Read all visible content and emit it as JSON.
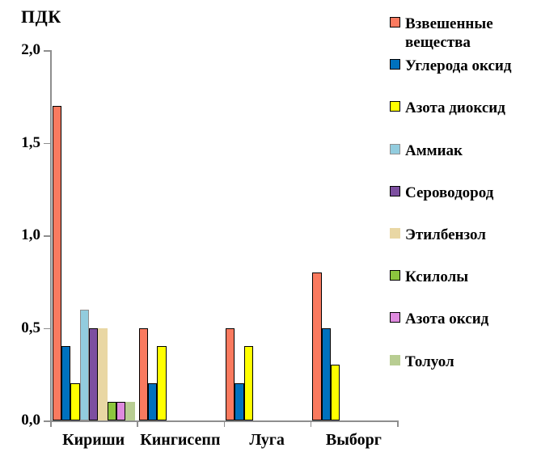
{
  "chart_data": {
    "type": "bar",
    "title": "ПДК",
    "categories": [
      "Кириши",
      "Кингисепп",
      "Луга",
      "Выборг"
    ],
    "series": [
      {
        "name": "Взвешенные вещества",
        "color": "#FA7A5F",
        "border": "#000000",
        "values": [
          1.7,
          0.5,
          0.5,
          0.8
        ]
      },
      {
        "name": "Углерода оксид",
        "color": "#0071BE",
        "border": "#000000",
        "values": [
          0.4,
          0.2,
          0.2,
          0.5
        ]
      },
      {
        "name": "Азота диоксид",
        "color": "#FFFF00",
        "border": "#000000",
        "values": [
          0.2,
          0.4,
          0.4,
          0.3
        ]
      },
      {
        "name": "Аммиак",
        "color": "#92CCDE",
        "border": "#8e8e8e",
        "values": [
          0.6,
          0,
          0,
          0
        ]
      },
      {
        "name": "Сероводород",
        "color": "#7D4FA0",
        "border": "#000000",
        "values": [
          0.5,
          0,
          0,
          0
        ]
      },
      {
        "name": "Этилбензол",
        "color": "#E9D7A4",
        "border": "none",
        "values": [
          0.5,
          0,
          0,
          0
        ]
      },
      {
        "name": "Ксилолы",
        "color": "#8CC63E",
        "border": "#000000",
        "values": [
          0.1,
          0,
          0,
          0
        ]
      },
      {
        "name": "Азота оксид",
        "color": "#DE8ADE",
        "border": "#000000",
        "values": [
          0.1,
          0,
          0,
          0
        ]
      },
      {
        "name": "Толуол",
        "color": "#B8CD92",
        "border": "none",
        "values": [
          0.1,
          0,
          0,
          0
        ]
      }
    ],
    "ylabel": "ПДК",
    "xlabel": "",
    "ylim": [
      0,
      2
    ],
    "y_ticks": [
      {
        "value": 0.0,
        "label": "0,0"
      },
      {
        "value": 0.5,
        "label": "0,5"
      },
      {
        "value": 1.0,
        "label": "1,0"
      },
      {
        "value": 1.5,
        "label": "1,5"
      },
      {
        "value": 2.0,
        "label": "2,0"
      }
    ],
    "grid": false,
    "legend_position": "right",
    "axis_color": "#8e8e8e"
  }
}
